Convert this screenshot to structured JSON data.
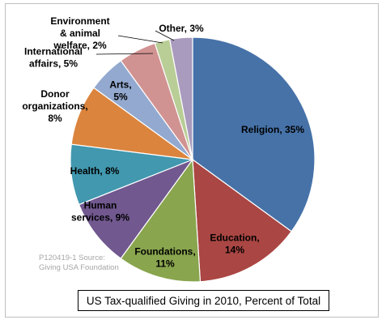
{
  "chart_data": {
    "type": "pie",
    "title": "US Tax-qualified Giving in 2010, Percent of Total",
    "source_note": [
      "P120419-1 Source:",
      "Giving USA Foundation"
    ],
    "start_angle_deg": 0,
    "direction": "clockwise",
    "slices": [
      {
        "label": "Religion, 35%",
        "category": "Religion",
        "value": 35,
        "color": "#4672a8",
        "label_lines": [
          "Religion, 35%"
        ]
      },
      {
        "label": "Education, 14%",
        "category": "Education",
        "value": 14,
        "color": "#aa4643",
        "label_lines": [
          "Education,",
          "14%"
        ]
      },
      {
        "label": "Foundations, 11%",
        "category": "Foundations",
        "value": 11,
        "color": "#89a54e",
        "label_lines": [
          "Foundations,",
          "11%"
        ]
      },
      {
        "label": "Human services, 9%",
        "category": "Human services",
        "value": 9,
        "color": "#71588f",
        "label_lines": [
          "Human",
          "services, 9%"
        ]
      },
      {
        "label": "Health, 8%",
        "category": "Health",
        "value": 8,
        "color": "#4198af",
        "label_lines": [
          "Health, 8%"
        ]
      },
      {
        "label": "Donor organizations, 8%",
        "category": "Donor organizations",
        "value": 8,
        "color": "#db843d",
        "label_lines": [
          "Donor",
          "organizations,",
          "8%"
        ]
      },
      {
        "label": "Arts, 5%",
        "category": "Arts",
        "value": 5,
        "color": "#93a9cf",
        "label_lines": [
          "Arts,",
          "5%"
        ]
      },
      {
        "label": "International affairs, 5%",
        "category": "International affairs",
        "value": 5,
        "color": "#d19392",
        "label_lines": [
          "International",
          "affairs, 5%"
        ]
      },
      {
        "label": "Environment & animal welfare, 2%",
        "category": "Environment & animal welfare",
        "value": 2,
        "color": "#b9cd96",
        "label_lines": [
          "Environment",
          "& animal",
          "welfare, 2%"
        ]
      },
      {
        "label": "Other, 3%",
        "category": "Other",
        "value": 3,
        "color": "#a99bbd",
        "label_lines": [
          "Other, 3%"
        ]
      }
    ]
  }
}
